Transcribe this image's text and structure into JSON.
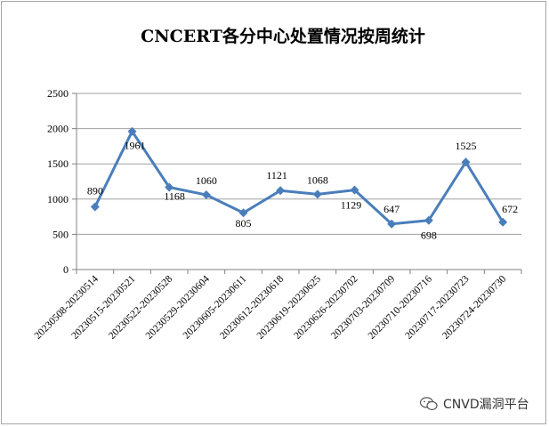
{
  "chart_data": {
    "type": "line",
    "title": "CNCERT各分中心处置情况按周统计",
    "xlabel": "",
    "ylabel": "",
    "ylim": [
      0,
      2500
    ],
    "yticks": [
      0,
      500,
      1000,
      1500,
      2000,
      2500
    ],
    "grid": "horizontal",
    "legend": "none",
    "line_color": "#4a7ebb",
    "categories": [
      "20230508-20230514",
      "20230515-20230521",
      "20230522-20230528",
      "20230529-20230604",
      "20230605-20230611",
      "20230612-20230618",
      "20230619-20230625",
      "20230626-20230702",
      "20230703-20230709",
      "20230710-20230716",
      "20230717-20230723",
      "20230724-20230730"
    ],
    "series": [
      {
        "values": [
          890,
          1961,
          1168,
          1060,
          805,
          1121,
          1068,
          1129,
          647,
          698,
          1525,
          672
        ]
      }
    ]
  },
  "watermark": {
    "text": "CNVD漏洞平台",
    "icon": "wechat-icon"
  }
}
